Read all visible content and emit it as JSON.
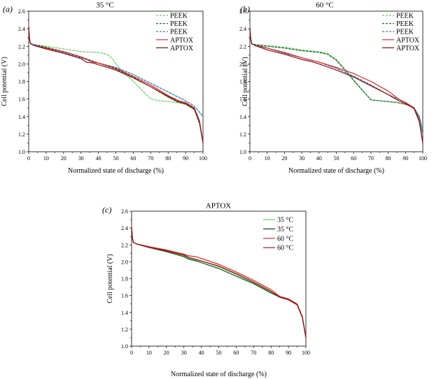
{
  "chart_data": [
    {
      "type": "line",
      "panel_label": "(a)",
      "title": "35 °C",
      "xlabel": "Normalized state of discharge (%)",
      "ylabel": "Cell potential (V)",
      "xlim": [
        0,
        100
      ],
      "ylim": [
        1.0,
        2.6
      ],
      "xticks": [
        "0",
        "10",
        "20",
        "30",
        "40",
        "50",
        "60",
        "70",
        "80",
        "90",
        "100"
      ],
      "yticks": [
        "1.0",
        "1.2",
        "1.4",
        "1.6",
        "1.8",
        "2.0",
        "2.2",
        "2.4",
        "2.6"
      ],
      "legend_position": "top-right",
      "grid": false,
      "series": [
        {
          "name": "PEEK",
          "color": "#66cc66",
          "dash": "dashed",
          "x": [
            0,
            0.5,
            1,
            3,
            10,
            20,
            30,
            40,
            45,
            48,
            52,
            60,
            70,
            75,
            80,
            85,
            90,
            95,
            98,
            100
          ],
          "y": [
            2.42,
            2.28,
            2.23,
            2.22,
            2.2,
            2.17,
            2.14,
            2.13,
            2.11,
            2.06,
            1.95,
            1.8,
            1.6,
            1.58,
            1.57,
            1.56,
            1.54,
            1.5,
            1.35,
            1.1
          ]
        },
        {
          "name": "PEEK",
          "color": "#1f6b2f",
          "dash": "dashed",
          "x": [
            0,
            0.5,
            1,
            3,
            10,
            20,
            30,
            40,
            50,
            60,
            70,
            80,
            85,
            90,
            95,
            98,
            100
          ],
          "y": [
            2.42,
            2.28,
            2.23,
            2.22,
            2.19,
            2.14,
            2.08,
            2.01,
            1.94,
            1.85,
            1.74,
            1.62,
            1.57,
            1.54,
            1.48,
            1.32,
            1.1
          ]
        },
        {
          "name": "PEEK",
          "color": "#2a6fb8",
          "dash": "dashed",
          "x": [
            0,
            0.5,
            1,
            3,
            10,
            20,
            30,
            40,
            50,
            60,
            70,
            80,
            90,
            95,
            98,
            100
          ],
          "y": [
            2.42,
            2.28,
            2.23,
            2.22,
            2.18,
            2.13,
            2.07,
            2.01,
            1.96,
            1.88,
            1.78,
            1.68,
            1.58,
            1.52,
            1.45,
            1.4
          ]
        },
        {
          "name": "APTOX",
          "color": "#e02020",
          "dash": "solid",
          "x": [
            0,
            0.5,
            1,
            3,
            10,
            20,
            30,
            33,
            37,
            40,
            50,
            60,
            70,
            80,
            86,
            90,
            95,
            98,
            100
          ],
          "y": [
            2.42,
            2.28,
            2.23,
            2.21,
            2.18,
            2.14,
            2.08,
            2.05,
            2.02,
            2.01,
            1.95,
            1.86,
            1.76,
            1.64,
            1.58,
            1.56,
            1.5,
            1.35,
            1.1
          ]
        },
        {
          "name": "APTOX",
          "color": "#8b1010",
          "dash": "solid",
          "x": [
            0,
            0.5,
            1,
            3,
            10,
            20,
            30,
            33,
            37,
            40,
            50,
            60,
            70,
            80,
            86,
            90,
            95,
            98,
            100
          ],
          "y": [
            2.42,
            2.28,
            2.23,
            2.21,
            2.17,
            2.12,
            2.06,
            2.02,
            2.01,
            1.99,
            1.93,
            1.84,
            1.74,
            1.63,
            1.57,
            1.55,
            1.49,
            1.34,
            1.1
          ]
        }
      ]
    },
    {
      "type": "line",
      "panel_label": "(b)",
      "title": "60 °C",
      "xlabel": "Normalized state of discharge (%)",
      "ylabel": "Cell potential (V)",
      "xlim": [
        0,
        100
      ],
      "ylim": [
        1.0,
        2.6
      ],
      "xticks": [
        "0",
        "10",
        "20",
        "30",
        "40",
        "50",
        "60",
        "70",
        "80",
        "90",
        "100"
      ],
      "yticks": [
        "1.0",
        "1.2",
        "1.4",
        "1.6",
        "1.8",
        "2.0",
        "2.2",
        "2.4",
        "2.6"
      ],
      "legend_position": "top-right",
      "grid": false,
      "series": [
        {
          "name": "PEEK",
          "color": "#66cc66",
          "dash": "dashed",
          "x": [
            0,
            0.5,
            1,
            3,
            10,
            20,
            30,
            40,
            45,
            50,
            55,
            60,
            70,
            75,
            80,
            85,
            90,
            95,
            98,
            100
          ],
          "y": [
            2.4,
            2.28,
            2.23,
            2.22,
            2.21,
            2.19,
            2.16,
            2.14,
            2.12,
            2.05,
            1.94,
            1.82,
            1.59,
            1.58,
            1.57,
            1.56,
            1.54,
            1.5,
            1.4,
            1.25
          ]
        },
        {
          "name": "PEEK",
          "color": "#1f6b2f",
          "dash": "dashed",
          "x": [
            0,
            0.5,
            1,
            3,
            10,
            20,
            30,
            40,
            45,
            50,
            55,
            60,
            70,
            75,
            80,
            85,
            90,
            95,
            98,
            100
          ],
          "y": [
            2.4,
            2.28,
            2.23,
            2.22,
            2.2,
            2.18,
            2.15,
            2.13,
            2.11,
            2.04,
            1.93,
            1.81,
            1.59,
            1.58,
            1.57,
            1.56,
            1.54,
            1.5,
            1.38,
            1.2
          ]
        },
        {
          "name": "PEEK",
          "color": "#2a6fb8",
          "dash": "dashed",
          "x": [
            0,
            0.5,
            1,
            3,
            10,
            20,
            30,
            40,
            50,
            60,
            70,
            80,
            90,
            95,
            98,
            100
          ],
          "y": [
            2.44,
            2.28,
            2.23,
            2.22,
            2.18,
            2.12,
            2.07,
            2.02,
            1.95,
            1.86,
            1.76,
            1.65,
            1.56,
            1.5,
            1.4,
            1.2
          ]
        },
        {
          "name": "APTOX",
          "color": "#e02020",
          "dash": "solid",
          "x": [
            0,
            0.5,
            1,
            3,
            10,
            20,
            30,
            40,
            50,
            60,
            70,
            80,
            86,
            90,
            95,
            98,
            100
          ],
          "y": [
            2.4,
            2.28,
            2.23,
            2.21,
            2.18,
            2.13,
            2.07,
            2.02,
            1.96,
            1.89,
            1.8,
            1.69,
            1.6,
            1.56,
            1.5,
            1.35,
            1.1
          ]
        },
        {
          "name": "APTOX",
          "color": "#8b1010",
          "dash": "solid",
          "x": [
            0,
            0.5,
            1,
            3,
            10,
            20,
            30,
            35,
            40,
            50,
            60,
            70,
            80,
            86,
            90,
            95,
            98,
            100
          ],
          "y": [
            2.4,
            2.28,
            2.23,
            2.21,
            2.16,
            2.11,
            2.05,
            2.03,
            2.0,
            1.93,
            1.85,
            1.75,
            1.65,
            1.58,
            1.55,
            1.49,
            1.34,
            1.1
          ]
        }
      ]
    },
    {
      "type": "line",
      "panel_label": "(c)",
      "title": "APTOX",
      "xlabel": "Normalized state of discharge (%)",
      "ylabel": "Cell potential (V)",
      "xlim": [
        0,
        100
      ],
      "ylim": [
        1.0,
        2.6
      ],
      "xticks": [
        "0",
        "10",
        "20",
        "30",
        "40",
        "50",
        "60",
        "70",
        "80",
        "90",
        "100"
      ],
      "yticks": [
        "1.0",
        "1.2",
        "1.4",
        "1.6",
        "1.8",
        "2.0",
        "2.2",
        "2.4",
        "2.6"
      ],
      "legend_position": "top-right",
      "grid": false,
      "series": [
        {
          "name": "35 °C",
          "color": "#66cc66",
          "dash": "solid",
          "x": [
            0,
            0.5,
            1,
            3,
            10,
            20,
            30,
            33,
            37,
            40,
            50,
            60,
            70,
            80,
            85,
            90,
            95,
            98,
            100
          ],
          "y": [
            2.41,
            2.28,
            2.23,
            2.21,
            2.18,
            2.13,
            2.07,
            2.04,
            2.02,
            2.01,
            1.94,
            1.85,
            1.75,
            1.64,
            1.58,
            1.55,
            1.49,
            1.34,
            1.1
          ]
        },
        {
          "name": "35 °C",
          "color": "#0f4a1f",
          "dash": "solid",
          "x": [
            0,
            0.5,
            1,
            3,
            10,
            20,
            30,
            33,
            37,
            40,
            50,
            60,
            70,
            80,
            85,
            90,
            95,
            98,
            100
          ],
          "y": [
            2.41,
            2.28,
            2.23,
            2.21,
            2.17,
            2.12,
            2.06,
            2.03,
            2.01,
            1.99,
            1.92,
            1.83,
            1.74,
            1.63,
            1.58,
            1.55,
            1.49,
            1.34,
            1.1
          ]
        },
        {
          "name": "60 °C",
          "color": "#e02020",
          "dash": "solid",
          "x": [
            0,
            0.5,
            1,
            3,
            10,
            20,
            30,
            33,
            37,
            40,
            50,
            60,
            70,
            80,
            85,
            90,
            95,
            98,
            100
          ],
          "y": [
            2.41,
            2.28,
            2.23,
            2.21,
            2.18,
            2.14,
            2.09,
            2.07,
            2.06,
            2.04,
            1.97,
            1.88,
            1.78,
            1.67,
            1.59,
            1.56,
            1.5,
            1.35,
            1.1
          ]
        },
        {
          "name": "60 °C",
          "color": "#8b1010",
          "dash": "solid",
          "x": [
            0,
            0.5,
            1,
            3,
            10,
            20,
            30,
            33,
            37,
            40,
            50,
            60,
            70,
            80,
            85,
            90,
            95,
            98,
            100
          ],
          "y": [
            2.41,
            2.28,
            2.23,
            2.21,
            2.17,
            2.13,
            2.08,
            2.05,
            2.03,
            2.01,
            1.95,
            1.86,
            1.76,
            1.65,
            1.58,
            1.55,
            1.49,
            1.34,
            1.1
          ]
        }
      ]
    }
  ]
}
